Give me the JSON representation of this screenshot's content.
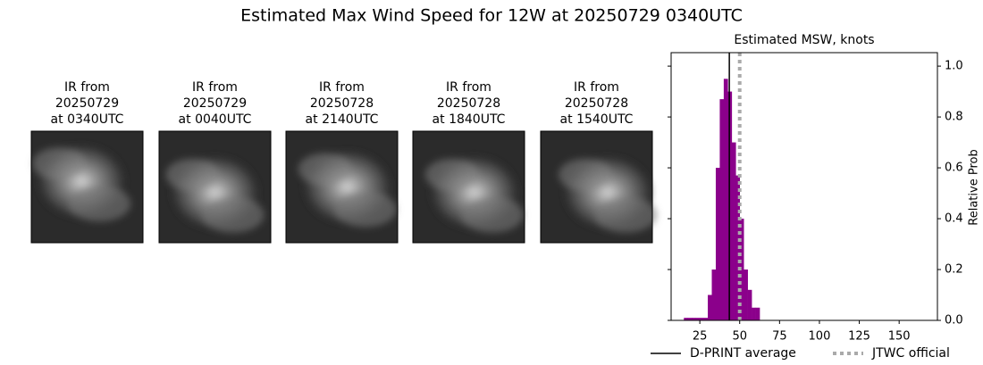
{
  "title": "Estimated Max Wind Speed for 12W at 20250729 0340UTC",
  "panels": [
    {
      "title": [
        "IR from",
        "20250729",
        "at 0340UTC"
      ]
    },
    {
      "title": [
        "IR from",
        "20250729",
        "at 0040UTC"
      ]
    },
    {
      "title": [
        "IR from",
        "20250728",
        "at 2140UTC"
      ]
    },
    {
      "title": [
        "IR from",
        "20250728",
        "at 1840UTC"
      ]
    },
    {
      "title": [
        "IR from",
        "20250728",
        "at 1540UTC"
      ]
    }
  ],
  "chart_data": {
    "type": "histogram",
    "title": "Estimated MSW, knots",
    "y_label": "Relative Prob",
    "bins": [
      15,
      17.5,
      20,
      22.5,
      25,
      27.5,
      30,
      32.5,
      35,
      37.5,
      40,
      42.5,
      45,
      47.5,
      50,
      52.5,
      55,
      57.5,
      60,
      62.5
    ],
    "values": [
      0.01,
      0.01,
      0.01,
      0.01,
      0.01,
      0.01,
      0.1,
      0.2,
      0.6,
      0.87,
      0.95,
      0.9,
      0.7,
      0.57,
      0.4,
      0.2,
      0.12,
      0.05,
      0.05
    ],
    "color": "#8b008b",
    "lines": [
      {
        "name": "D-PRINT average",
        "value": 43.5,
        "color": "#000000",
        "style": "solid"
      },
      {
        "name": "JTWC official",
        "value": 50,
        "color": "#aaaaaa",
        "style": "dotted"
      }
    ],
    "xlim": [
      7,
      174
    ],
    "xticks": [
      25,
      50,
      75,
      100,
      125,
      150
    ],
    "ylim": [
      0,
      1.053
    ],
    "yticks": [
      {
        "value": 0,
        "label": "0.0"
      },
      0.2,
      0.4,
      0.6,
      0.8,
      {
        "value": 1,
        "label": "1.0"
      }
    ]
  }
}
